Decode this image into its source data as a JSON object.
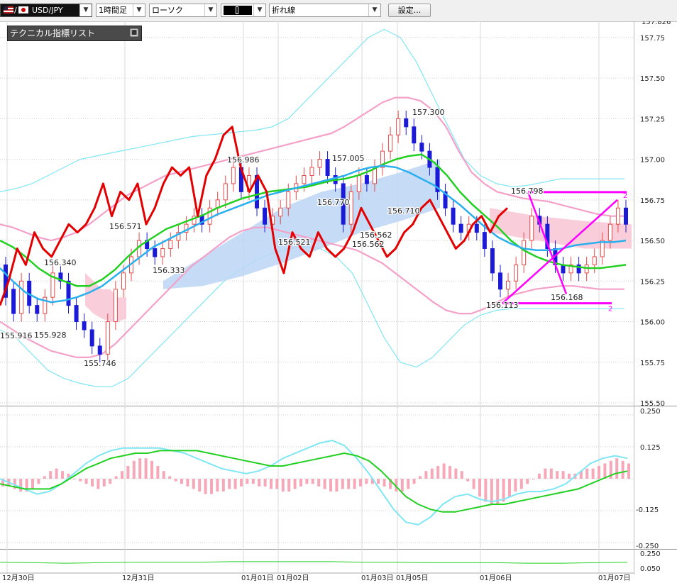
{
  "toolbar": {
    "pair": "USD/JPY",
    "timeframe": "1時間足",
    "chart_type": "ローソク",
    "line_style": "折れ線",
    "settings_label": "設定..."
  },
  "indicator_panel": {
    "title": "テクニカル指標リスト"
  },
  "colors": {
    "candle_up": "#e34a4a",
    "candle_down": "#1a1ad8",
    "ma_red": "#e30000",
    "ma_green": "#22d022",
    "ma_blue": "#2ab0ee",
    "bb_pink": "#f4a0c8",
    "bb_cyan": "#7fe6f6",
    "cloud_blue": "#bcd6f4",
    "cloud_pink": "#f9c4d4",
    "trendline_magenta": "#ff00ff"
  },
  "chart_data": [
    {
      "type": "candlestick",
      "ylim": [
        155.5,
        157.85
      ],
      "y_ticks": [
        "157.75",
        "157.50",
        "157.25",
        "157.00",
        "156.75",
        "156.50",
        "156.25",
        "156.00",
        "155.75",
        "155.50"
      ],
      "x_labels": [
        "12月30日",
        "12月31日",
        "01月01日",
        "01月02日",
        "01月03日",
        "01月05日",
        "01月06日",
        "01月07日"
      ],
      "price_annotations": [
        "156.340",
        "155.928",
        "155.916",
        "155.746",
        "156.571",
        "156.333",
        "156.986",
        "156.521",
        "156.770",
        "157.005",
        "156.562",
        "156.562",
        "156.710",
        "157.300",
        "156.798",
        "156.113",
        "156.168"
      ],
      "trendline_labels": [
        "2",
        "2"
      ],
      "top_clipped_label": "157.826",
      "candles": [
        [
          156.35,
          156.15
        ],
        [
          156.2,
          156.05
        ],
        [
          156.05,
          156.25
        ],
        [
          156.25,
          156.1
        ],
        [
          156.1,
          156.05
        ],
        [
          156.05,
          156.15
        ],
        [
          156.15,
          156.3
        ],
        [
          156.3,
          156.25
        ],
        [
          156.25,
          156.1
        ],
        [
          156.1,
          156.0
        ],
        [
          156.0,
          155.95
        ],
        [
          155.95,
          155.85
        ],
        [
          155.85,
          155.8
        ],
        [
          155.8,
          156.0
        ],
        [
          156.0,
          156.2
        ],
        [
          156.2,
          156.3
        ],
        [
          156.3,
          156.4
        ],
        [
          156.4,
          156.5
        ],
        [
          156.5,
          156.45
        ],
        [
          156.45,
          156.4
        ],
        [
          156.4,
          156.45
        ],
        [
          156.45,
          156.5
        ],
        [
          156.5,
          156.55
        ],
        [
          156.55,
          156.6
        ],
        [
          156.6,
          156.65
        ],
        [
          156.65,
          156.6
        ],
        [
          156.6,
          156.7
        ],
        [
          156.7,
          156.75
        ],
        [
          156.75,
          156.85
        ],
        [
          156.85,
          156.95
        ],
        [
          156.95,
          156.8
        ],
        [
          156.8,
          156.9
        ],
        [
          156.9,
          156.7
        ],
        [
          156.7,
          156.6
        ],
        [
          156.6,
          156.65
        ],
        [
          156.65,
          156.7
        ],
        [
          156.7,
          156.8
        ],
        [
          156.8,
          156.85
        ],
        [
          156.85,
          156.9
        ],
        [
          156.9,
          156.95
        ],
        [
          156.95,
          157.0
        ],
        [
          157.0,
          156.9
        ],
        [
          156.9,
          156.85
        ],
        [
          156.85,
          156.6
        ],
        [
          156.6,
          156.8
        ],
        [
          156.8,
          156.9
        ],
        [
          156.9,
          156.85
        ],
        [
          156.85,
          156.95
        ],
        [
          156.95,
          157.05
        ],
        [
          157.05,
          157.15
        ],
        [
          157.15,
          157.25
        ],
        [
          157.25,
          157.2
        ],
        [
          157.2,
          157.1
        ],
        [
          157.1,
          157.05
        ],
        [
          157.05,
          156.95
        ],
        [
          156.95,
          156.8
        ],
        [
          156.8,
          156.7
        ],
        [
          156.7,
          156.6
        ],
        [
          156.6,
          156.55
        ],
        [
          156.55,
          156.6
        ],
        [
          156.6,
          156.55
        ],
        [
          156.55,
          156.45
        ],
        [
          156.45,
          156.3
        ],
        [
          156.3,
          156.2
        ],
        [
          156.2,
          156.25
        ],
        [
          156.25,
          156.35
        ],
        [
          156.35,
          156.5
        ],
        [
          156.5,
          156.65
        ],
        [
          156.65,
          156.6
        ],
        [
          156.6,
          156.45
        ],
        [
          156.45,
          156.35
        ],
        [
          156.35,
          156.3
        ],
        [
          156.3,
          156.35
        ],
        [
          156.35,
          156.3
        ],
        [
          156.3,
          156.35
        ],
        [
          156.35,
          156.4
        ],
        [
          156.4,
          156.5
        ],
        [
          156.5,
          156.6
        ],
        [
          156.6,
          156.7
        ],
        [
          156.7,
          156.6
        ]
      ],
      "red_line": [
        156.1,
        156.25,
        156.45,
        156.35,
        156.55,
        156.45,
        156.4,
        156.5,
        156.6,
        156.55,
        156.6,
        156.7,
        156.85,
        156.65,
        156.8,
        156.75,
        156.85,
        156.6,
        156.7,
        156.85,
        156.95,
        156.9,
        156.95,
        156.65,
        156.9,
        157.0,
        157.15,
        157.2,
        156.95,
        156.8,
        156.9,
        156.8,
        156.45,
        156.3,
        156.55,
        156.45,
        156.4,
        156.55,
        156.45,
        156.4,
        156.45,
        156.55,
        156.7,
        156.6,
        156.5,
        156.4,
        156.45,
        156.55,
        156.6,
        156.7,
        156.75,
        156.65,
        156.55,
        156.45,
        156.5,
        156.6,
        156.65,
        156.55,
        156.65,
        156.7
      ],
      "green_line": [
        156.5,
        156.46,
        156.4,
        156.33,
        156.28,
        156.25,
        156.22,
        156.22,
        156.26,
        156.32,
        156.4,
        156.47,
        156.52,
        156.57,
        156.6,
        156.63,
        156.66,
        156.7,
        156.73,
        156.76,
        156.78,
        156.8,
        156.81,
        156.82,
        156.83,
        156.85,
        156.87,
        156.88,
        156.9,
        156.93,
        156.97,
        157.0,
        157.02,
        157.03,
        156.98,
        156.9,
        156.8,
        156.72,
        156.65,
        156.58,
        156.5,
        156.44,
        156.4,
        156.37,
        156.35,
        156.34,
        156.33,
        156.33,
        156.34,
        156.35
      ],
      "blue_line": [
        156.33,
        156.25,
        156.18,
        156.14,
        156.12,
        156.13,
        156.15,
        156.18,
        156.22,
        156.28,
        156.34,
        156.4,
        156.46,
        156.5,
        156.54,
        156.58,
        156.62,
        156.66,
        156.69,
        156.72,
        156.75,
        156.78,
        156.8,
        156.82,
        156.84,
        156.86,
        156.88,
        156.9,
        156.93,
        156.95,
        156.96,
        156.95,
        156.92,
        156.88,
        156.84,
        156.78,
        156.72,
        156.65,
        156.58,
        156.52,
        156.48,
        156.45,
        156.44,
        156.44,
        156.45,
        156.47,
        156.48,
        156.49,
        156.49,
        156.5
      ],
      "bb_pink_upper": [
        156.6,
        156.58,
        156.55,
        156.52,
        156.5,
        156.52,
        156.55,
        156.6,
        156.66,
        156.72,
        156.78,
        156.82,
        156.86,
        156.9,
        156.92,
        156.94,
        156.96,
        156.98,
        157.0,
        157.02,
        157.04,
        157.06,
        157.08,
        157.1,
        157.12,
        157.14,
        157.16,
        157.2,
        157.25,
        157.3,
        157.35,
        157.38,
        157.38,
        157.36,
        157.3,
        157.2,
        157.05,
        156.92,
        156.85,
        156.8,
        156.78,
        156.76,
        156.75,
        156.74,
        156.72,
        156.7,
        156.68,
        156.66,
        156.65,
        156.65
      ],
      "bb_pink_lower": [
        156.0,
        155.95,
        155.9,
        155.86,
        155.82,
        155.8,
        155.78,
        155.78,
        155.8,
        155.86,
        155.94,
        156.02,
        156.1,
        156.18,
        156.26,
        156.34,
        156.4,
        156.46,
        156.52,
        156.56,
        156.58,
        156.58,
        156.56,
        156.54,
        156.52,
        156.5,
        156.48,
        156.46,
        156.44,
        156.4,
        156.36,
        156.3,
        156.24,
        156.18,
        156.12,
        156.07,
        156.05,
        156.05,
        156.08,
        156.12,
        156.16,
        156.18,
        156.2,
        156.21,
        156.22,
        156.22,
        156.21,
        156.2,
        156.2,
        156.2
      ],
      "bb_cyan_upper": [
        156.8,
        156.82,
        156.85,
        156.9,
        156.95,
        157.0,
        157.02,
        157.04,
        157.06,
        157.08,
        157.1,
        157.12,
        157.14,
        157.15,
        157.16,
        157.17,
        157.18,
        157.2,
        157.25,
        157.35,
        157.45,
        157.55,
        157.65,
        157.75,
        157.8,
        157.75,
        157.6,
        157.4,
        157.2,
        157.0,
        156.9,
        156.85,
        156.83,
        156.84,
        156.86,
        156.88,
        156.88,
        156.88,
        156.88,
        156.88
      ],
      "bb_cyan_lower": [
        155.95,
        155.9,
        155.8,
        155.7,
        155.65,
        155.62,
        155.6,
        155.6,
        155.65,
        155.75,
        155.85,
        155.95,
        156.05,
        156.15,
        156.25,
        156.32,
        156.38,
        156.42,
        156.45,
        156.46,
        156.45,
        156.4,
        156.3,
        156.1,
        155.9,
        155.75,
        155.72,
        155.78,
        155.88,
        155.98,
        156.04,
        156.07,
        156.08,
        156.08,
        156.08,
        156.08,
        156.08,
        156.08,
        156.08,
        156.08
      ],
      "trendlines": [
        {
          "from": [
            156.798
          ],
          "to": [
            156.798
          ]
        },
        {
          "from": [
            156.113
          ],
          "to": [
            156.113
          ]
        }
      ]
    },
    {
      "type": "macd",
      "ylim": [
        -0.25,
        0.25
      ],
      "y_ticks": [
        "0.250",
        "0.125",
        "-0.125",
        "-0.250"
      ],
      "histogram": [
        -0.03,
        -0.03,
        -0.04,
        -0.05,
        -0.05,
        -0.04,
        -0.02,
        0.01,
        0.03,
        0.04,
        0.03,
        0.02,
        0.0,
        -0.01,
        -0.02,
        -0.03,
        -0.04,
        -0.03,
        -0.02,
        0.01,
        0.03,
        0.05,
        0.07,
        0.08,
        0.08,
        0.07,
        0.05,
        0.03,
        0.01,
        -0.01,
        -0.02,
        -0.03,
        -0.04,
        -0.05,
        -0.06,
        -0.06,
        -0.05,
        -0.05,
        -0.04,
        -0.04,
        -0.03,
        -0.02,
        -0.02,
        -0.03,
        -0.03,
        -0.04,
        -0.04,
        -0.05,
        -0.05,
        -0.04,
        -0.03,
        -0.02,
        -0.02,
        -0.03,
        -0.04,
        -0.05,
        -0.05,
        -0.04,
        -0.04,
        -0.04,
        -0.03,
        -0.02,
        -0.02,
        -0.02,
        -0.03,
        -0.04,
        -0.05,
        -0.05,
        -0.04,
        -0.02,
        0.01,
        0.03,
        0.04,
        0.05,
        0.06,
        0.05,
        0.04,
        0.03,
        -0.01,
        -0.04,
        -0.07,
        -0.09,
        -0.1,
        -0.1,
        -0.09,
        -0.07,
        -0.05,
        -0.04,
        -0.02,
        0.0,
        0.02,
        0.04,
        0.04,
        0.03,
        0.03,
        0.02,
        0.02,
        0.03,
        0.04,
        0.04,
        0.05,
        0.06,
        0.07,
        0.08,
        0.07,
        0.06
      ],
      "cyan_line": [
        0.0,
        -0.02,
        -0.04,
        -0.06,
        -0.05,
        -0.02,
        0.02,
        0.06,
        0.09,
        0.11,
        0.12,
        0.12,
        0.12,
        0.12,
        0.11,
        0.1,
        0.08,
        0.06,
        0.04,
        0.03,
        0.02,
        0.03,
        0.05,
        0.08,
        0.1,
        0.12,
        0.14,
        0.15,
        0.13,
        0.08,
        0.02,
        -0.05,
        -0.12,
        -0.17,
        -0.18,
        -0.15,
        -0.1,
        -0.07,
        -0.06,
        -0.08,
        -0.09,
        -0.08,
        -0.06,
        -0.05,
        -0.05,
        -0.04,
        -0.02,
        0.02,
        0.06,
        0.08,
        0.09,
        0.08
      ],
      "green_line": [
        -0.02,
        -0.03,
        -0.04,
        -0.04,
        -0.04,
        -0.02,
        0.01,
        0.04,
        0.06,
        0.08,
        0.09,
        0.1,
        0.1,
        0.11,
        0.11,
        0.11,
        0.11,
        0.1,
        0.09,
        0.08,
        0.07,
        0.06,
        0.05,
        0.05,
        0.06,
        0.07,
        0.08,
        0.09,
        0.1,
        0.09,
        0.07,
        0.03,
        -0.02,
        -0.07,
        -0.1,
        -0.12,
        -0.13,
        -0.13,
        -0.12,
        -0.11,
        -0.1,
        -0.1,
        -0.09,
        -0.08,
        -0.07,
        -0.06,
        -0.05,
        -0.04,
        -0.02,
        0.0,
        0.02,
        0.03
      ]
    },
    {
      "type": "line",
      "ylim": [
        0.0,
        0.3
      ],
      "y_ticks": [
        "0.250",
        "0.050"
      ],
      "values": [
        0.1,
        0.09,
        0.08,
        0.09,
        0.1,
        0.1,
        0.1,
        0.11,
        0.11,
        0.11,
        0.11,
        0.1,
        0.1,
        0.09,
        0.09,
        0.09,
        0.08,
        0.08,
        0.09,
        0.1
      ]
    }
  ]
}
